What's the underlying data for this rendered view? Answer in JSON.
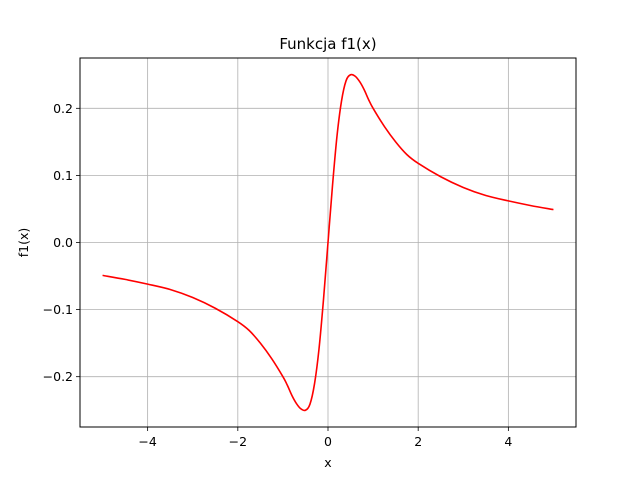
{
  "chart_data": {
    "type": "line",
    "title": "Funkcja f1(x)",
    "xlabel": "x",
    "ylabel": "f1(x)",
    "xlim": [
      -5.5,
      5.5
    ],
    "ylim": [
      -0.275,
      0.275
    ],
    "grid": true,
    "xticks": [
      -4,
      -2,
      0,
      2,
      4
    ],
    "xtick_labels": [
      "−4",
      "−2",
      "0",
      "2",
      "4"
    ],
    "yticks": [
      -0.2,
      -0.1,
      0.0,
      0.1,
      0.2
    ],
    "ytick_labels": [
      "−0.2",
      "−0.1",
      "0.0",
      "0.1",
      "0.2"
    ],
    "series": [
      {
        "color": "#ff0000",
        "x": [
          -5.0,
          -4.5,
          -4.0,
          -3.5,
          -3.0,
          -2.5,
          -2.0,
          -1.75,
          -1.5,
          -1.25,
          -1.0,
          -0.9,
          -0.8,
          -0.7,
          -0.6,
          -0.5,
          -0.4,
          -0.3,
          -0.2,
          -0.1,
          0.0,
          0.1,
          0.2,
          0.3,
          0.4,
          0.5,
          0.6,
          0.7,
          0.8,
          0.9,
          1.0,
          1.25,
          1.5,
          1.75,
          2.0,
          2.5,
          3.0,
          3.5,
          4.0,
          4.5,
          5.0
        ],
        "y": [
          -0.049,
          -0.055,
          -0.062,
          -0.07,
          -0.082,
          -0.098,
          -0.118,
          -0.131,
          -0.15,
          -0.173,
          -0.2,
          -0.213,
          -0.228,
          -0.24,
          -0.248,
          -0.25,
          -0.241,
          -0.211,
          -0.159,
          -0.085,
          0.0,
          0.085,
          0.159,
          0.211,
          0.241,
          0.25,
          0.248,
          0.24,
          0.228,
          0.213,
          0.2,
          0.173,
          0.15,
          0.131,
          0.118,
          0.098,
          0.082,
          0.07,
          0.062,
          0.055,
          0.049
        ]
      }
    ]
  }
}
